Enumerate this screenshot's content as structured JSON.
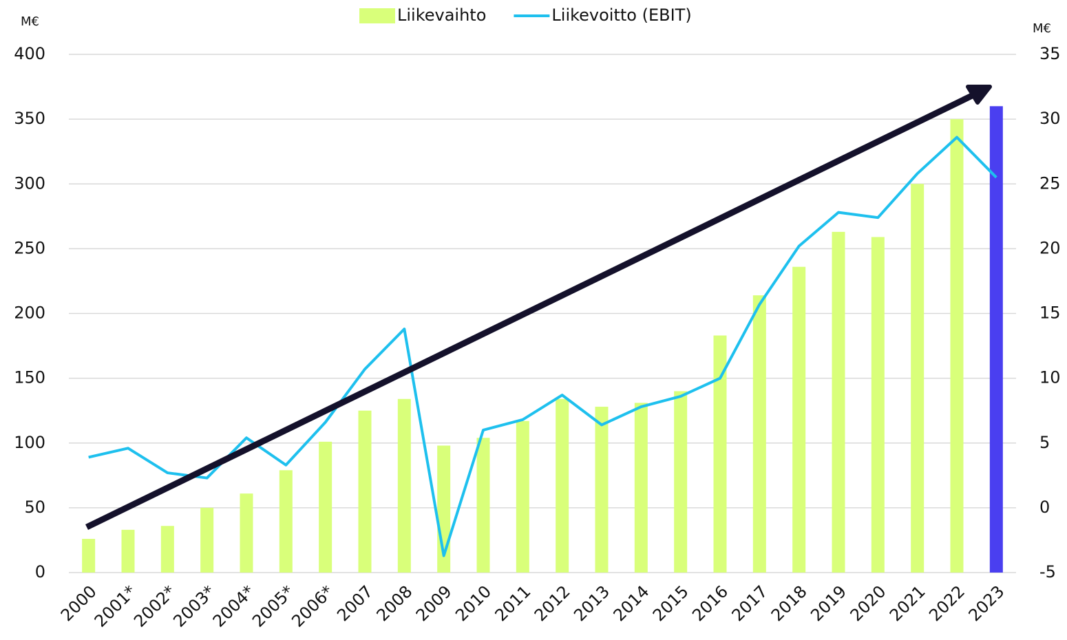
{
  "chart_data": {
    "type": "bar_line",
    "y_unit_label": "M€",
    "y2_unit_label": "M€",
    "categories": [
      "2000",
      "2001*",
      "2002*",
      "2003*",
      "2004*",
      "2005*",
      "2006*",
      "2007",
      "2008",
      "2009",
      "2010",
      "2011",
      "2012",
      "2013",
      "2014",
      "2015",
      "2016",
      "2017",
      "2018",
      "2019",
      "2020",
      "2021",
      "2022",
      "2023"
    ],
    "series": [
      {
        "name": "Liikevaihto",
        "type": "bar",
        "color": "#d9ff7a",
        "colors": [
          "#d9ff7a",
          "#d9ff7a",
          "#d9ff7a",
          "#d9ff7a",
          "#d9ff7a",
          "#d9ff7a",
          "#d9ff7a",
          "#d9ff7a",
          "#d9ff7a",
          "#d9ff7a",
          "#d9ff7a",
          "#d9ff7a",
          "#d9ff7a",
          "#d9ff7a",
          "#d9ff7a",
          "#d9ff7a",
          "#d9ff7a",
          "#d9ff7a",
          "#d9ff7a",
          "#d9ff7a",
          "#d9ff7a",
          "#d9ff7a",
          "#d9ff7a",
          "#4a3ff0"
        ],
        "values": [
          26,
          33,
          36,
          50,
          61,
          79,
          101,
          125,
          134,
          98,
          104,
          117,
          134,
          128,
          131,
          140,
          183,
          214,
          236,
          263,
          259,
          300,
          350,
          360
        ]
      },
      {
        "name": "Liikevoitto (EBIT)",
        "type": "line",
        "color": "#1ec0ee",
        "axis": "y2",
        "values": [
          3.9,
          4.6,
          2.7,
          2.3,
          5.4,
          3.3,
          6.6,
          10.7,
          13.8,
          -3.7,
          6.0,
          6.8,
          8.7,
          6.4,
          7.8,
          8.6,
          10.0,
          15.7,
          20.2,
          22.8,
          22.4,
          25.8,
          28.6,
          25.5
        ]
      }
    ],
    "ylim": [
      0,
      400
    ],
    "yticks": [
      0,
      50,
      100,
      150,
      200,
      250,
      300,
      350,
      400
    ],
    "y2lim": [
      -5,
      35
    ],
    "y2ticks": [
      -5,
      0,
      5,
      10,
      15,
      20,
      25,
      30,
      35
    ],
    "grid": true,
    "legend": "top"
  }
}
